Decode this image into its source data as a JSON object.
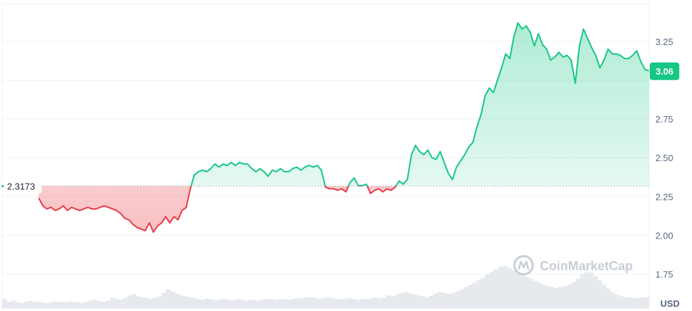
{
  "chart_data": {
    "type": "area",
    "reference": {
      "label": "2.3173",
      "value": 2.3173
    },
    "current": {
      "label": "3.06",
      "value": 3.06
    },
    "currency_label": "USD",
    "y_ticks": [
      {
        "value": 1.75,
        "label": "1.75"
      },
      {
        "value": 2.0,
        "label": "2.00"
      },
      {
        "value": 2.25,
        "label": "2.25"
      },
      {
        "value": 2.5,
        "label": "2.50"
      },
      {
        "value": 2.75,
        "label": "2.75"
      },
      {
        "value": 3.25,
        "label": "3.25"
      }
    ],
    "ylim": [
      1.53,
      3.49
    ],
    "grid": true,
    "watermark": "CoinMarketCap",
    "colors": {
      "up": "#16c784",
      "down": "#ea3943",
      "up_fill": "#16c784",
      "down_fill": "#ea3943",
      "grid": "#eff2f5",
      "volume": "#e6e9ee",
      "tag": "#16c784"
    },
    "series": [
      {
        "values": [
          2.24,
          2.19,
          2.17,
          2.18,
          2.16,
          2.17,
          2.19,
          2.16,
          2.18,
          2.17,
          2.16,
          2.17,
          2.18,
          2.17,
          2.17,
          2.18,
          2.19,
          2.18,
          2.17,
          2.16,
          2.14,
          2.11,
          2.1,
          2.07,
          2.05,
          2.04,
          2.03,
          2.08,
          2.02,
          2.06,
          2.08,
          2.12,
          2.08,
          2.12,
          2.1,
          2.16,
          2.18,
          2.3,
          2.39,
          2.41,
          2.42,
          2.41,
          2.43,
          2.46,
          2.44,
          2.46,
          2.45,
          2.47,
          2.45,
          2.47,
          2.46,
          2.46,
          2.43,
          2.41,
          2.43,
          2.41,
          2.38,
          2.42,
          2.41,
          2.43,
          2.41,
          2.41,
          2.43,
          2.44,
          2.42,
          2.44,
          2.45,
          2.44,
          2.45,
          2.42,
          2.31,
          2.3,
          2.3,
          2.29,
          2.3,
          2.28,
          2.34,
          2.37,
          2.32,
          2.32,
          2.33,
          2.27,
          2.29,
          2.3,
          2.28,
          2.3,
          2.29,
          2.31,
          2.35,
          2.33,
          2.36,
          2.52,
          2.58,
          2.54,
          2.52,
          2.55,
          2.5,
          2.49,
          2.54,
          2.47,
          2.4,
          2.36,
          2.44,
          2.48,
          2.52,
          2.57,
          2.6,
          2.7,
          2.78,
          2.9,
          2.95,
          2.92,
          3.0,
          3.08,
          3.17,
          3.14,
          3.28,
          3.37,
          3.33,
          3.35,
          3.31,
          3.22,
          3.3,
          3.23,
          3.2,
          3.13,
          3.15,
          3.18,
          3.15,
          3.16,
          3.13,
          2.98,
          3.22,
          3.33,
          3.27,
          3.21,
          3.16,
          3.08,
          3.13,
          3.2,
          3.17,
          3.17,
          3.16,
          3.14,
          3.14,
          3.16,
          3.19,
          3.12,
          3.07,
          3.06
        ]
      }
    ],
    "volume": [
      0.22,
      0.15,
      0.18,
      0.14,
      0.12,
      0.15,
      0.17,
      0.14,
      0.16,
      0.13,
      0.12,
      0.14,
      0.16,
      0.15,
      0.14,
      0.16,
      0.15,
      0.14,
      0.13,
      0.15,
      0.18,
      0.2,
      0.17,
      0.15,
      0.18,
      0.25,
      0.22,
      0.2,
      0.24,
      0.3,
      0.34,
      0.28,
      0.26,
      0.24,
      0.22,
      0.25,
      0.28,
      0.36,
      0.45,
      0.4,
      0.34,
      0.3,
      0.28,
      0.26,
      0.24,
      0.22,
      0.2,
      0.23,
      0.21,
      0.19,
      0.2,
      0.22,
      0.2,
      0.19,
      0.21,
      0.2,
      0.18,
      0.2,
      0.19,
      0.18,
      0.2,
      0.22,
      0.21,
      0.2,
      0.22,
      0.21,
      0.2,
      0.22,
      0.24,
      0.23,
      0.25,
      0.26,
      0.24,
      0.22,
      0.24,
      0.26,
      0.24,
      0.22,
      0.21,
      0.22,
      0.24,
      0.22,
      0.2,
      0.22,
      0.21,
      0.23,
      0.25,
      0.24,
      0.26,
      0.3,
      0.28,
      0.32,
      0.36,
      0.38,
      0.35,
      0.33,
      0.3,
      0.28,
      0.26,
      0.3,
      0.35,
      0.38,
      0.36,
      0.34,
      0.36,
      0.4,
      0.44,
      0.5,
      0.55,
      0.6,
      0.66,
      0.72,
      0.8,
      0.86,
      0.92,
      0.98,
      1.0,
      0.96,
      0.9,
      0.85,
      0.8,
      0.74,
      0.7,
      0.65,
      0.6,
      0.56,
      0.52,
      0.5,
      0.48,
      0.5,
      0.52,
      0.56,
      0.62,
      0.7,
      0.8,
      0.86,
      0.84,
      0.76,
      0.66,
      0.56,
      0.46,
      0.38,
      0.32,
      0.28,
      0.26,
      0.25,
      0.24,
      0.24,
      0.25,
      0.26
    ]
  }
}
